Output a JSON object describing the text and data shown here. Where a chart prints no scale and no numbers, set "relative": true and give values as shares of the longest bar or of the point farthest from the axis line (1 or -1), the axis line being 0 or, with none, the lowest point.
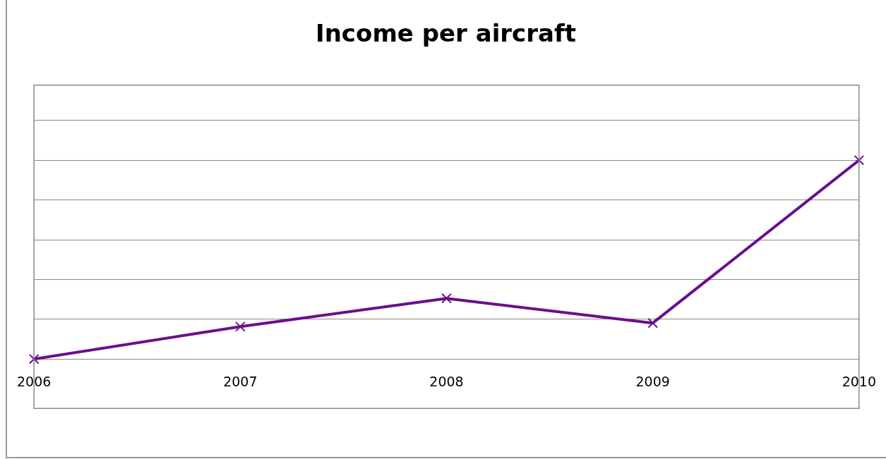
{
  "chart_data": {
    "type": "line",
    "title": "Income per aircraft",
    "categories": [
      "2006",
      "2007",
      "2008",
      "2009",
      "2010"
    ],
    "series": [
      {
        "color": "#6a0f8e",
        "values": [
          0,
          0.163,
          0.305,
          0.181,
          1
        ]
      }
    ],
    "relative": true,
    "grid": "y",
    "legend": false,
    "marker": "cross",
    "line_style": "solid"
  }
}
